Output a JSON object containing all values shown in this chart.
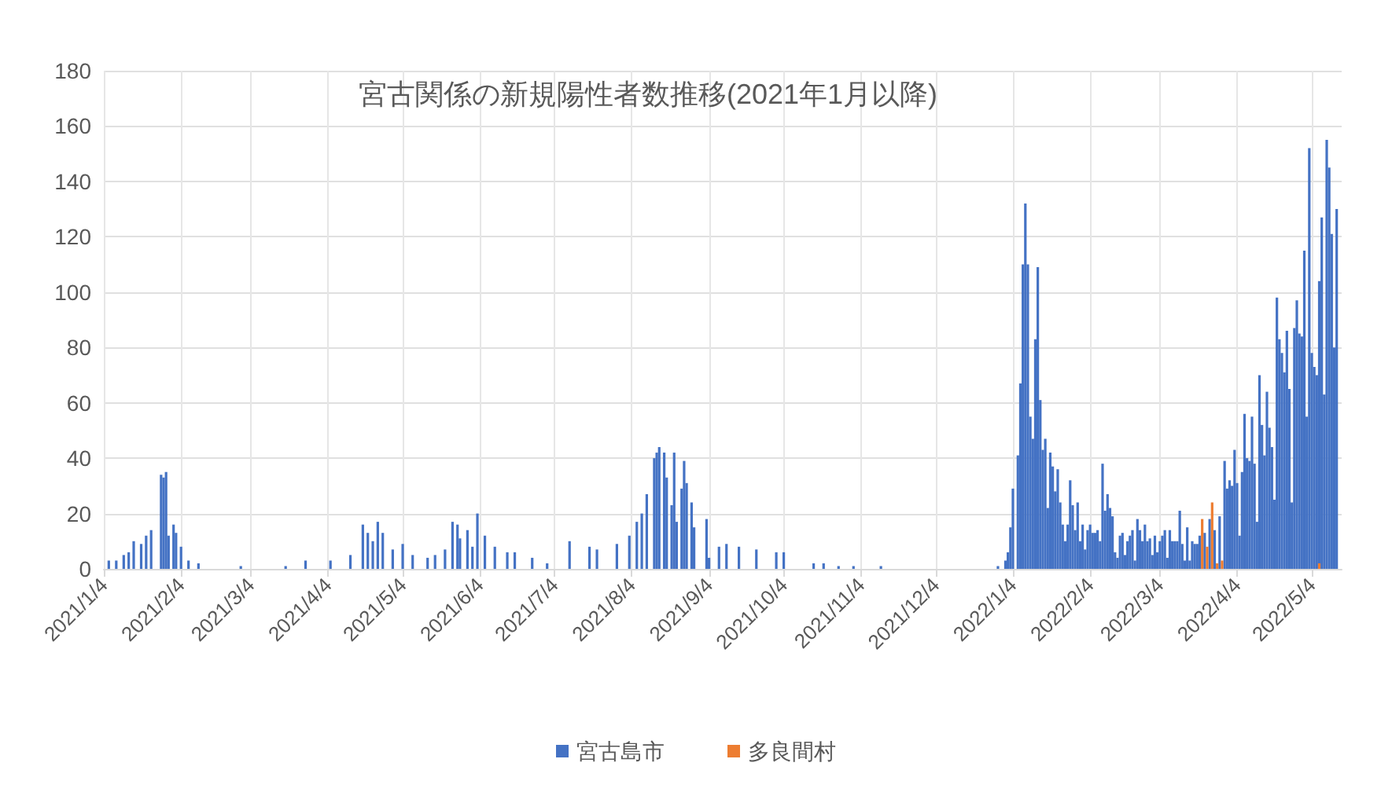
{
  "chart_data": {
    "type": "bar",
    "title": "宮古関係の新規陽性者数推移(2021年1月以降)",
    "grid": true,
    "legend": "bottom",
    "x": [
      "2021-01-06",
      "2021-01-09",
      "2021-01-12",
      "2021-01-14",
      "2021-01-16",
      "2021-01-19",
      "2021-01-21",
      "2021-01-23",
      "2021-01-27",
      "2021-01-28",
      "2021-01-29",
      "2021-01-30",
      "2021-02-01",
      "2021-02-02",
      "2021-02-04",
      "2021-02-07",
      "2021-02-11",
      "2021-02-28",
      "2021-03-18",
      "2021-03-26",
      "2021-04-05",
      "2021-04-13",
      "2021-04-18",
      "2021-04-20",
      "2021-04-22",
      "2021-04-24",
      "2021-04-26",
      "2021-04-30",
      "2021-05-04",
      "2021-05-08",
      "2021-05-14",
      "2021-05-17",
      "2021-05-21",
      "2021-05-24",
      "2021-05-26",
      "2021-05-27",
      "2021-05-30",
      "2021-06-01",
      "2021-06-03",
      "2021-06-06",
      "2021-06-10",
      "2021-06-15",
      "2021-06-18",
      "2021-06-25",
      "2021-07-01",
      "2021-07-10",
      "2021-07-18",
      "2021-07-21",
      "2021-07-29",
      "2021-08-03",
      "2021-08-06",
      "2021-08-08",
      "2021-08-10",
      "2021-08-13",
      "2021-08-14",
      "2021-08-15",
      "2021-08-17",
      "2021-08-18",
      "2021-08-20",
      "2021-08-21",
      "2021-08-22",
      "2021-08-24",
      "2021-08-25",
      "2021-08-26",
      "2021-08-28",
      "2021-08-29",
      "2021-09-03",
      "2021-09-04",
      "2021-09-08",
      "2021-09-11",
      "2021-09-16",
      "2021-09-23",
      "2021-10-01",
      "2021-10-04",
      "2021-10-16",
      "2021-10-20",
      "2021-10-26",
      "2021-11-01",
      "2021-11-12",
      "2021-12-29",
      "2022-01-01",
      "2022-01-02",
      "2022-01-03",
      "2022-01-04",
      "2022-01-06",
      "2022-01-07",
      "2022-01-08",
      "2022-01-09",
      "2022-01-10",
      "2022-01-11",
      "2022-01-12",
      "2022-01-13",
      "2022-01-14",
      "2022-01-15",
      "2022-01-16",
      "2022-01-17",
      "2022-01-18",
      "2022-01-19",
      "2022-01-20",
      "2022-01-21",
      "2022-01-22",
      "2022-01-23",
      "2022-01-24",
      "2022-01-25",
      "2022-01-26",
      "2022-01-27",
      "2022-01-28",
      "2022-01-29",
      "2022-01-30",
      "2022-01-31",
      "2022-02-01",
      "2022-02-02",
      "2022-02-03",
      "2022-02-04",
      "2022-02-05",
      "2022-02-06",
      "2022-02-07",
      "2022-02-08",
      "2022-02-09",
      "2022-02-10",
      "2022-02-11",
      "2022-02-12",
      "2022-02-13",
      "2022-02-14",
      "2022-02-15",
      "2022-02-16",
      "2022-02-17",
      "2022-02-18",
      "2022-02-19",
      "2022-02-20",
      "2022-02-21",
      "2022-02-22",
      "2022-02-23",
      "2022-02-24",
      "2022-02-25",
      "2022-02-26",
      "2022-02-27",
      "2022-02-28",
      "2022-03-01",
      "2022-03-02",
      "2022-03-03",
      "2022-03-04",
      "2022-03-05",
      "2022-03-06",
      "2022-03-07",
      "2022-03-08",
      "2022-03-09",
      "2022-03-10",
      "2022-03-11",
      "2022-03-12",
      "2022-03-13",
      "2022-03-14",
      "2022-03-15",
      "2022-03-16",
      "2022-03-17",
      "2022-03-18",
      "2022-03-19",
      "2022-03-20",
      "2022-03-21",
      "2022-03-22",
      "2022-03-23",
      "2022-03-24",
      "2022-03-25",
      "2022-03-26",
      "2022-03-27",
      "2022-03-28",
      "2022-03-29",
      "2022-03-30",
      "2022-03-31",
      "2022-04-01",
      "2022-04-02",
      "2022-04-03",
      "2022-04-04",
      "2022-04-05",
      "2022-04-06",
      "2022-04-07",
      "2022-04-08",
      "2022-04-09",
      "2022-04-10",
      "2022-04-11",
      "2022-04-12",
      "2022-04-13",
      "2022-04-14",
      "2022-04-15",
      "2022-04-16",
      "2022-04-17",
      "2022-04-18",
      "2022-04-19",
      "2022-04-20",
      "2022-04-21",
      "2022-04-22",
      "2022-04-23",
      "2022-04-24",
      "2022-04-25",
      "2022-04-26",
      "2022-04-27",
      "2022-04-28",
      "2022-04-29",
      "2022-04-30",
      "2022-05-01",
      "2022-05-02",
      "2022-05-03",
      "2022-05-04",
      "2022-05-05",
      "2022-05-06",
      "2022-05-07",
      "2022-05-08",
      "2022-05-09",
      "2022-05-10",
      "2022-05-11",
      "2022-05-12",
      "2022-05-13",
      "2022-05-14"
    ],
    "series": [
      {
        "name": "宮古島市",
        "color": "#4472c4",
        "values": [
          3,
          3,
          5,
          6,
          10,
          9,
          12,
          14,
          34,
          33,
          35,
          12,
          16,
          13,
          8,
          3,
          2,
          1,
          1,
          3,
          3,
          5,
          16,
          13,
          10,
          17,
          13,
          7,
          9,
          5,
          4,
          5,
          7,
          17,
          16,
          11,
          14,
          8,
          20,
          12,
          8,
          6,
          6,
          4,
          2,
          10,
          8,
          7,
          9,
          12,
          17,
          20,
          27,
          40,
          42,
          44,
          42,
          33,
          23,
          42,
          17,
          29,
          39,
          31,
          24,
          15,
          18,
          4,
          8,
          9,
          8,
          7,
          6,
          6,
          2,
          2,
          1,
          1,
          1,
          1,
          3,
          6,
          15,
          29,
          41,
          67,
          110,
          132,
          110,
          55,
          47,
          83,
          109,
          61,
          43,
          47,
          22,
          42,
          37,
          28,
          36,
          24,
          16,
          10,
          16,
          32,
          23,
          14,
          24,
          10,
          16,
          7,
          14,
          16,
          13,
          13,
          14,
          10,
          38,
          21,
          27,
          22,
          19,
          6,
          4,
          12,
          13,
          5,
          10,
          12,
          14,
          3,
          18,
          14,
          10,
          16,
          10,
          11,
          5,
          12,
          6,
          10,
          12,
          14,
          4,
          14,
          10,
          10,
          10,
          21,
          9,
          3,
          15,
          3,
          10,
          9,
          9,
          12,
          null,
          13,
          null,
          18,
          null,
          14,
          null,
          19,
          null,
          39,
          29,
          32,
          30,
          43,
          31,
          12,
          35,
          56,
          40,
          39,
          55,
          38,
          17,
          70,
          52,
          41,
          64,
          51,
          44,
          25,
          98,
          83,
          78,
          71,
          86,
          65,
          24,
          87,
          97,
          85,
          84,
          115,
          55,
          152,
          78,
          73,
          70,
          104,
          127,
          63,
          155,
          145,
          121,
          80,
          130
        ]
      },
      {
        "name": "多良間村",
        "color": "#ed7d31",
        "values": [
          null,
          null,
          null,
          null,
          null,
          null,
          null,
          null,
          null,
          null,
          null,
          null,
          null,
          null,
          null,
          null,
          null,
          null,
          null,
          null,
          null,
          null,
          null,
          null,
          null,
          null,
          null,
          null,
          null,
          null,
          null,
          null,
          null,
          null,
          null,
          null,
          null,
          null,
          null,
          null,
          null,
          null,
          null,
          null,
          null,
          null,
          null,
          null,
          null,
          null,
          null,
          null,
          null,
          null,
          null,
          null,
          null,
          null,
          null,
          null,
          null,
          null,
          null,
          null,
          null,
          null,
          null,
          null,
          null,
          null,
          null,
          null,
          null,
          null,
          null,
          null,
          null,
          null,
          null,
          null,
          null,
          null,
          null,
          null,
          null,
          null,
          null,
          null,
          null,
          null,
          null,
          null,
          null,
          null,
          null,
          null,
          null,
          null,
          null,
          null,
          null,
          null,
          null,
          null,
          null,
          null,
          null,
          null,
          null,
          null,
          null,
          null,
          null,
          null,
          null,
          null,
          null,
          null,
          null,
          null,
          null,
          null,
          null,
          null,
          null,
          null,
          null,
          null,
          null,
          null,
          null,
          null,
          null,
          null,
          null,
          null,
          null,
          null,
          null,
          null,
          null,
          null,
          null,
          null,
          null,
          null,
          null,
          null,
          null,
          null,
          null,
          null,
          null,
          null,
          null,
          null,
          null,
          null,
          18,
          null,
          8,
          null,
          24,
          null,
          2,
          null,
          3,
          null,
          null,
          null,
          null,
          null,
          null,
          null,
          null,
          null,
          null,
          null,
          null,
          null,
          null,
          null,
          null,
          null,
          null,
          null,
          null,
          null,
          null,
          null,
          null,
          null,
          null,
          null,
          null,
          null,
          null,
          null,
          null,
          null,
          null,
          null,
          null,
          null,
          null,
          2,
          null,
          null,
          null,
          null,
          null,
          null,
          null
        ]
      }
    ],
    "xlim": [
      "2021-01-04",
      "2022-05-16"
    ],
    "xticks": [
      {
        "value": "2021-01-04",
        "label": "2021/1/4"
      },
      {
        "value": "2021-02-04",
        "label": "2021/2/4"
      },
      {
        "value": "2021-03-04",
        "label": "2021/3/4"
      },
      {
        "value": "2021-04-04",
        "label": "2021/4/4"
      },
      {
        "value": "2021-05-04",
        "label": "2021/5/4"
      },
      {
        "value": "2021-06-04",
        "label": "2021/6/4"
      },
      {
        "value": "2021-07-04",
        "label": "2021/7/4"
      },
      {
        "value": "2021-08-04",
        "label": "2021/8/4"
      },
      {
        "value": "2021-09-04",
        "label": "2021/9/4"
      },
      {
        "value": "2021-10-04",
        "label": "2021/10/4"
      },
      {
        "value": "2021-11-04",
        "label": "2021/11/4"
      },
      {
        "value": "2021-12-04",
        "label": "2021/12/4"
      },
      {
        "value": "2022-01-04",
        "label": "2022/1/4"
      },
      {
        "value": "2022-02-04",
        "label": "2022/2/4"
      },
      {
        "value": "2022-03-04",
        "label": "2022/3/4"
      },
      {
        "value": "2022-04-04",
        "label": "2022/4/4"
      },
      {
        "value": "2022-05-04",
        "label": "2022/5/4"
      }
    ],
    "ylim": [
      0,
      180
    ],
    "yticks": [
      0,
      20,
      40,
      60,
      80,
      100,
      120,
      140,
      160,
      180
    ]
  }
}
